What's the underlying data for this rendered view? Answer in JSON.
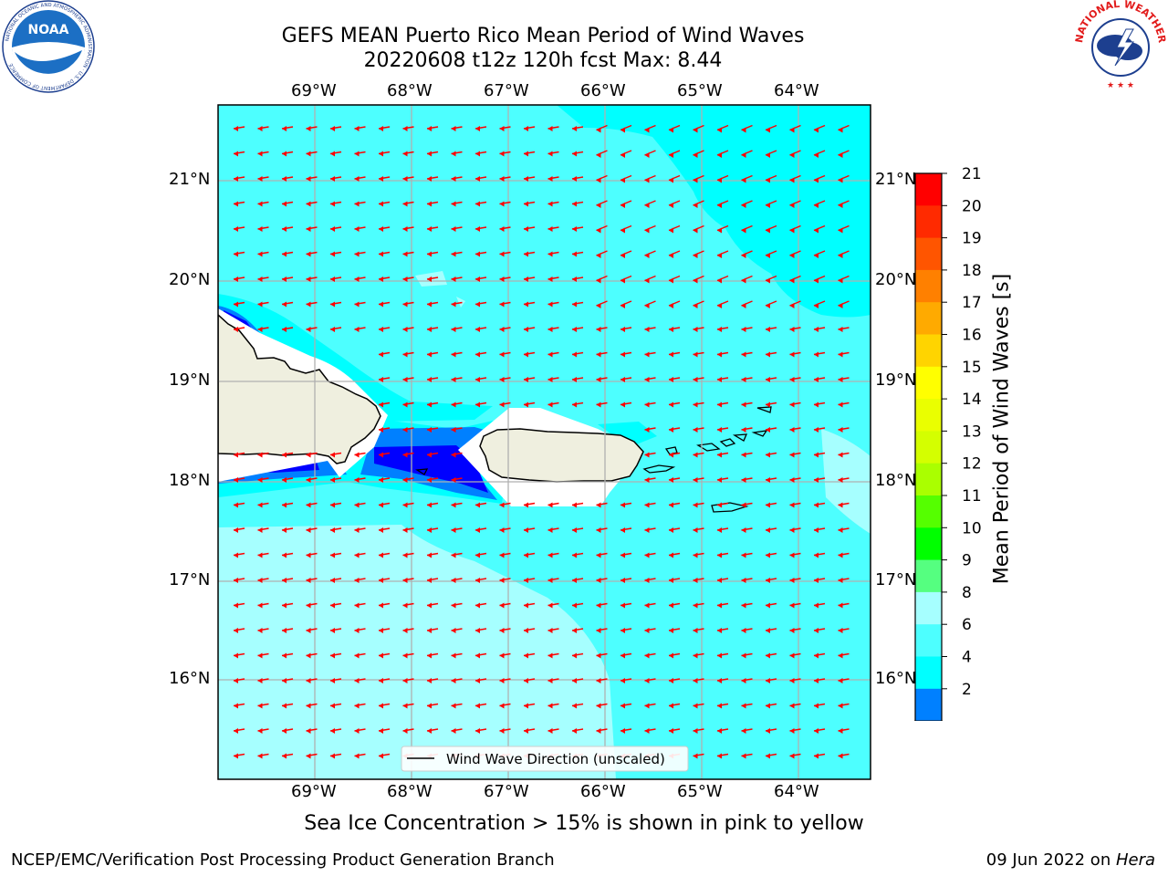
{
  "header": {
    "title_line1": "GEFS MEAN Puerto Rico Mean Period of Wind Waves",
    "title_line2": "20220608 t12z 120h fcst   Max: 8.44"
  },
  "logos": {
    "left": {
      "name": "noaa-logo",
      "text": "NOAA",
      "ring_text": "NATIONAL OCEANIC AND ATMOSPHERIC ADMINISTRATION · U.S. DEPARTMENT OF COMMERCE"
    },
    "right": {
      "name": "nws-logo",
      "ring_text": "NATIONAL WEATHER SERVICE"
    }
  },
  "map": {
    "lon_labels": [
      "69°W",
      "68°W",
      "67°W",
      "66°W",
      "65°W",
      "64°W"
    ],
    "lat_labels": [
      "21°N",
      "20°N",
      "19°N",
      "18°N",
      "17°N",
      "16°N"
    ],
    "legend_label": "Wind Wave Direction (unscaled)",
    "arrow_color": "#ff0000",
    "colors": {
      "ocean_main": "#4dffff",
      "ocean_light": "#a6ffff",
      "ocean_cyan": "#00ffff",
      "blue": "#0080ff",
      "dark_blue": "#0000ff",
      "land": "#efefdf",
      "white": "#ffffff"
    }
  },
  "colorbar": {
    "label": "Mean Period of Wind Waves [s]",
    "ticks": [
      "21",
      "20",
      "19",
      "18",
      "17",
      "16",
      "15",
      "14",
      "13",
      "12",
      "11",
      "10",
      "9",
      "8",
      "6",
      "4",
      "2"
    ],
    "colors": [
      "#ff0000",
      "#ff2a00",
      "#ff5500",
      "#ff8000",
      "#ffaa00",
      "#ffd400",
      "#ffff00",
      "#eaff00",
      "#d4ff00",
      "#aaff00",
      "#55ff00",
      "#00ff00",
      "#55ff80",
      "#a6ffff",
      "#4dffff",
      "#00ffff",
      "#0080ff"
    ],
    "under_color": "#0000ff"
  },
  "note": "Sea Ice Concentration > 15% is shown in pink to yellow",
  "footer": {
    "left": "NCEP/EMC/Verification Post Processing Product Generation Branch",
    "right_date": "09 Jun 2022 on ",
    "right_host": "Hera"
  }
}
